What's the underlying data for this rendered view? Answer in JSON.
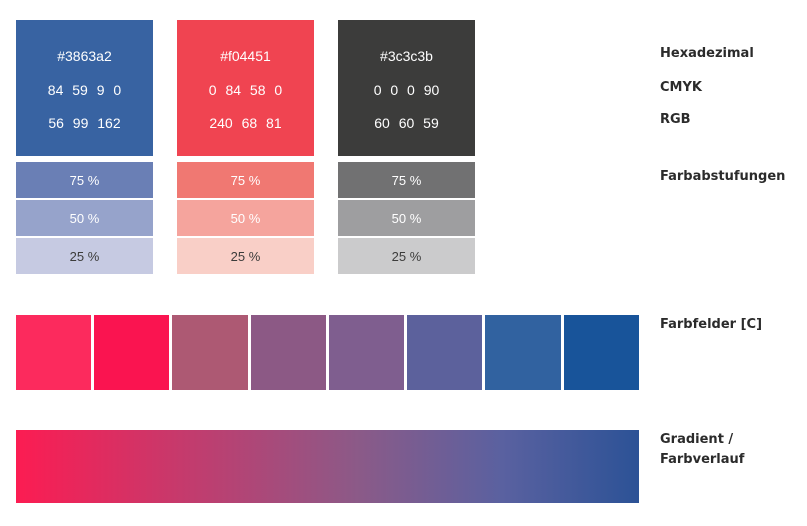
{
  "colors": [
    {
      "hex": "#3863a2",
      "cmyk": "84 59 9 0",
      "rgb": "56 99 162",
      "tints": [
        {
          "label": "75 %",
          "color": "#6a7fb5"
        },
        {
          "label": "50 %",
          "color": "#96a3cb"
        },
        {
          "label": "25 %",
          "color": "#c6cae2"
        }
      ]
    },
    {
      "hex": "#f04451",
      "cmyk": "0 84 58 0",
      "rgb": "240 68 81",
      "tints": [
        {
          "label": "75 %",
          "color": "#f07872"
        },
        {
          "label": "50 %",
          "color": "#f5a49d"
        },
        {
          "label": "25 %",
          "color": "#f9cfc7"
        }
      ]
    },
    {
      "hex": "#3c3c3b",
      "cmyk": "0 0 0 90",
      "rgb": "60 60 59",
      "tints": [
        {
          "label": "75 %",
          "color": "#717172"
        },
        {
          "label": "50 %",
          "color": "#9e9ea0"
        },
        {
          "label": "25 %",
          "color": "#cbcbcc"
        }
      ]
    }
  ],
  "labels": {
    "hex": "Hexadezimal",
    "cmyk": "CMYK",
    "rgb": "RGB",
    "tints": "Farbabstufungen",
    "fields": "Farbfelder [C]",
    "gradient_line1": "Gradient /",
    "gradient_line2": "Farbverlauf"
  },
  "color_fields": [
    "#fc2a5d",
    "#fa1450",
    "#ad5973",
    "#8c5985",
    "#7f5e8f",
    "#5c619c",
    "#3162a0",
    "#18549a"
  ],
  "gradient": {
    "start": "#fc1c52",
    "mid": "#8b5a88",
    "mid2": "#5a61a0",
    "end": "#2c5296"
  }
}
